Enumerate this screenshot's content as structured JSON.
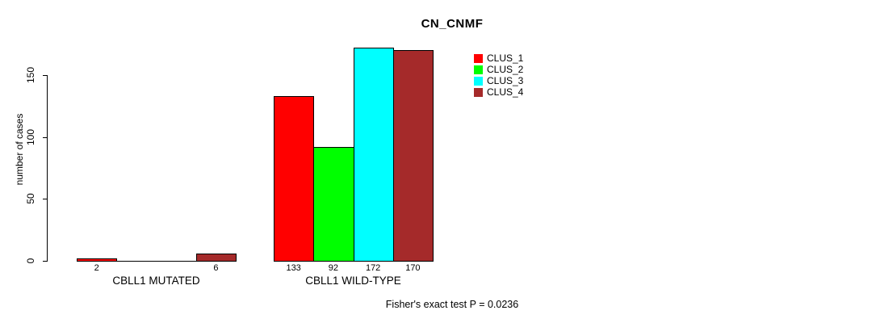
{
  "chart_data": {
    "type": "bar",
    "title": "CN_CNMF",
    "ylabel": "number of cases",
    "xlabel": "",
    "ylim": [
      0,
      150
    ],
    "yticks": [
      "0",
      "50",
      "100",
      "150"
    ],
    "grid": false,
    "categories": [
      "CBLL1 MUTATED",
      "CBLL1 WILD-TYPE"
    ],
    "series": [
      {
        "name": "CLUS_1",
        "color": "#ff0000",
        "values": [
          2,
          133
        ]
      },
      {
        "name": "CLUS_2",
        "color": "#00ff00",
        "values": [
          0,
          92
        ]
      },
      {
        "name": "CLUS_3",
        "color": "#00ffff",
        "values": [
          0,
          172
        ]
      },
      {
        "name": "CLUS_4",
        "color": "#a52a2a",
        "values": [
          6,
          170
        ]
      }
    ],
    "bar_value_labels": [
      [
        "2",
        "",
        "",
        "6"
      ],
      [
        "133",
        "92",
        "172",
        "170"
      ]
    ],
    "legend_position": "top-right",
    "annotation": "Fisher's exact test P = 0.0236"
  },
  "colors": {
    "axis": "#000000",
    "text": "#000000",
    "background": "#ffffff"
  }
}
